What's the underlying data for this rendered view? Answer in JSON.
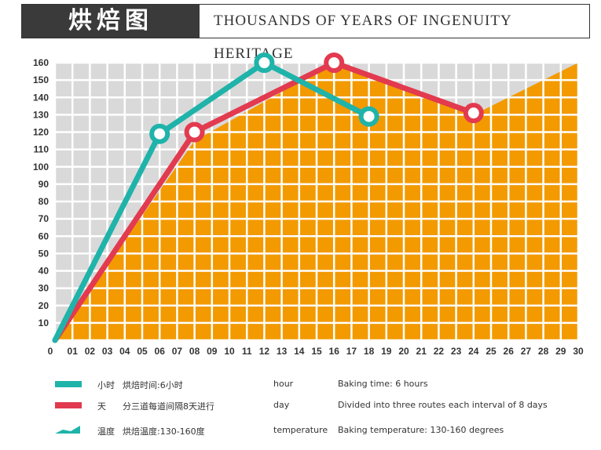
{
  "header": {
    "badge": "烘焙图",
    "subtitle": "THOUSANDS OF YEARS OF INGENUITY HERITAGE"
  },
  "colors": {
    "hour": "#1fb3aa",
    "day": "#e23a4f",
    "temperature_fill": "#f29a00",
    "grid": "#ffffff",
    "grid_bg": "#d9d9d9"
  },
  "chart_data": {
    "type": "line",
    "x_ticks": [
      "0",
      "01",
      "02",
      "03",
      "04",
      "05",
      "06",
      "07",
      "08",
      "09",
      "10",
      "11",
      "12",
      "13",
      "14",
      "15",
      "16",
      "17",
      "18",
      "19",
      "20",
      "21",
      "22",
      "23",
      "24",
      "25",
      "26",
      "27",
      "28",
      "29",
      "30"
    ],
    "y_ticks": [
      "10",
      "20",
      "30",
      "40",
      "50",
      "60",
      "70",
      "80",
      "90",
      "100",
      "110",
      "120",
      "130",
      "140",
      "150",
      "160"
    ],
    "xlim": [
      0,
      30
    ],
    "ylim": [
      0,
      160
    ],
    "grid": true,
    "area": {
      "points": [
        [
          0,
          0
        ],
        [
          8,
          115
        ],
        [
          16,
          160
        ],
        [
          24,
          130
        ],
        [
          30,
          160
        ]
      ]
    },
    "series": [
      {
        "key": "day",
        "points": [
          [
            0,
            0
          ],
          [
            8,
            120
          ],
          [
            16,
            160
          ],
          [
            24,
            131
          ]
        ],
        "markers": [
          [
            8,
            120
          ],
          [
            16,
            160
          ],
          [
            24,
            131
          ]
        ]
      },
      {
        "key": "hour",
        "points": [
          [
            0,
            0
          ],
          [
            6,
            119
          ],
          [
            12,
            160
          ],
          [
            18,
            129
          ]
        ],
        "markers": [
          [
            6,
            119
          ],
          [
            12,
            160
          ],
          [
            18,
            129
          ]
        ]
      }
    ]
  },
  "legend": [
    {
      "key": "hour",
      "cn_label": "小时",
      "cn_desc": "烘焙时间:6小时",
      "en_label": "hour",
      "en_desc": "Baking time: 6 hours"
    },
    {
      "key": "day",
      "cn_label": "天",
      "cn_desc": "分三道每道间隔8天进行",
      "en_label": "day",
      "en_desc": "Divided into three routes each interval of 8 days"
    },
    {
      "key": "temperature",
      "cn_label": "温度",
      "cn_desc": "烘焙温度:130-160度",
      "en_label": "temperature",
      "en_desc": "Baking temperature: 130-160 degrees"
    }
  ]
}
